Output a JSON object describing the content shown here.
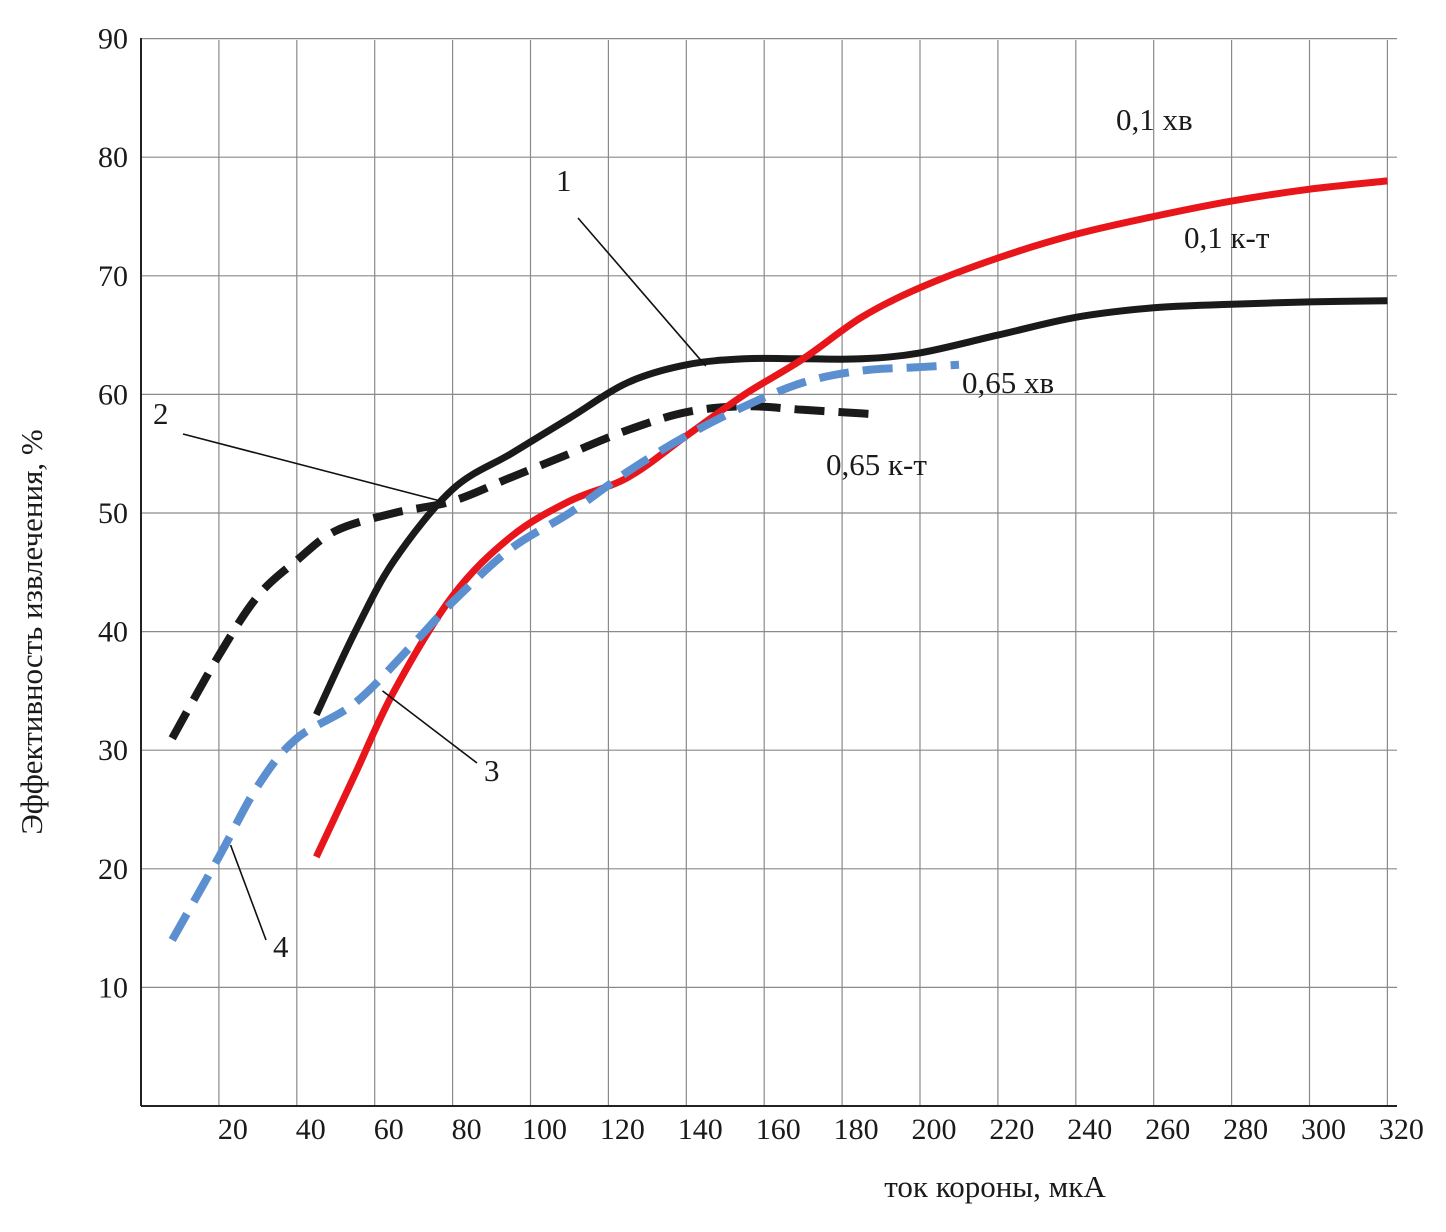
{
  "chart_data": {
    "type": "line",
    "xlabel": "ток короны, мкА",
    "ylabel": "Эффективность извлечения, %",
    "xlim": [
      0,
      330
    ],
    "ylim": [
      0,
      90
    ],
    "x_ticks": [
      "20",
      "40",
      "60",
      "80",
      "100",
      "120",
      "140",
      "160",
      "180",
      "200",
      "220",
      "240",
      "260",
      "280",
      "300",
      "320"
    ],
    "y_ticks": [
      "10",
      "20",
      "30",
      "40",
      "50",
      "60",
      "70",
      "80",
      "90"
    ],
    "grid": true,
    "series": [
      {
        "name": "1",
        "color": "#1a1a1a",
        "dash": "solid",
        "points": [
          [
            45,
            33
          ],
          [
            55,
            40
          ],
          [
            65,
            46
          ],
          [
            80,
            52
          ],
          [
            95,
            55
          ],
          [
            110,
            58
          ],
          [
            125,
            61
          ],
          [
            140,
            62.5
          ],
          [
            155,
            63
          ],
          [
            170,
            63
          ],
          [
            185,
            63
          ],
          [
            200,
            63.5
          ],
          [
            220,
            65
          ],
          [
            240,
            66.5
          ],
          [
            260,
            67.3
          ],
          [
            280,
            67.6
          ],
          [
            300,
            67.8
          ],
          [
            320,
            67.9
          ]
        ]
      },
      {
        "name": "2",
        "color": "#1a1a1a",
        "dash": "dash",
        "points": [
          [
            8,
            31
          ],
          [
            20,
            38
          ],
          [
            30,
            43
          ],
          [
            40,
            46
          ],
          [
            50,
            48.5
          ],
          [
            65,
            50
          ],
          [
            80,
            51
          ],
          [
            95,
            53
          ],
          [
            110,
            55
          ],
          [
            125,
            57
          ],
          [
            140,
            58.5
          ],
          [
            155,
            59
          ],
          [
            170,
            58.7
          ],
          [
            185,
            58.4
          ],
          [
            190,
            58.3
          ]
        ]
      },
      {
        "name": "3",
        "color": "#e8161b",
        "dash": "solid",
        "points": [
          [
            45,
            21
          ],
          [
            55,
            28
          ],
          [
            65,
            35
          ],
          [
            80,
            43
          ],
          [
            95,
            48
          ],
          [
            110,
            51
          ],
          [
            125,
            53
          ],
          [
            140,
            56.5
          ],
          [
            155,
            60
          ],
          [
            170,
            63
          ],
          [
            185,
            66.5
          ],
          [
            200,
            69
          ],
          [
            220,
            71.5
          ],
          [
            240,
            73.5
          ],
          [
            260,
            75
          ],
          [
            280,
            76.3
          ],
          [
            300,
            77.3
          ],
          [
            320,
            78
          ]
        ]
      },
      {
        "name": "4",
        "color": "#5b8fcf",
        "dash": "dash",
        "points": [
          [
            8,
            14
          ],
          [
            20,
            21
          ],
          [
            30,
            27
          ],
          [
            40,
            31
          ],
          [
            55,
            34
          ],
          [
            70,
            39
          ],
          [
            80,
            42.5
          ],
          [
            95,
            47
          ],
          [
            110,
            50
          ],
          [
            125,
            53.5
          ],
          [
            140,
            56.5
          ],
          [
            155,
            59
          ],
          [
            170,
            61
          ],
          [
            185,
            62
          ],
          [
            200,
            62.3
          ],
          [
            210,
            62.5
          ]
        ]
      }
    ],
    "annotations": [
      {
        "id": "curve-1",
        "text": "1",
        "target_series": "1"
      },
      {
        "id": "curve-2",
        "text": "2",
        "target_series": "2"
      },
      {
        "id": "curve-3",
        "text": "3",
        "target_series": "3"
      },
      {
        "id": "curve-4",
        "text": "4",
        "target_series": "4"
      },
      {
        "id": "label-01-hv",
        "text": "0,1 хв"
      },
      {
        "id": "label-01-kt",
        "text": "0,1 к-т"
      },
      {
        "id": "label-065-hv",
        "text": "0,65 хв"
      },
      {
        "id": "label-065-kt",
        "text": "0,65 к-т"
      }
    ]
  }
}
